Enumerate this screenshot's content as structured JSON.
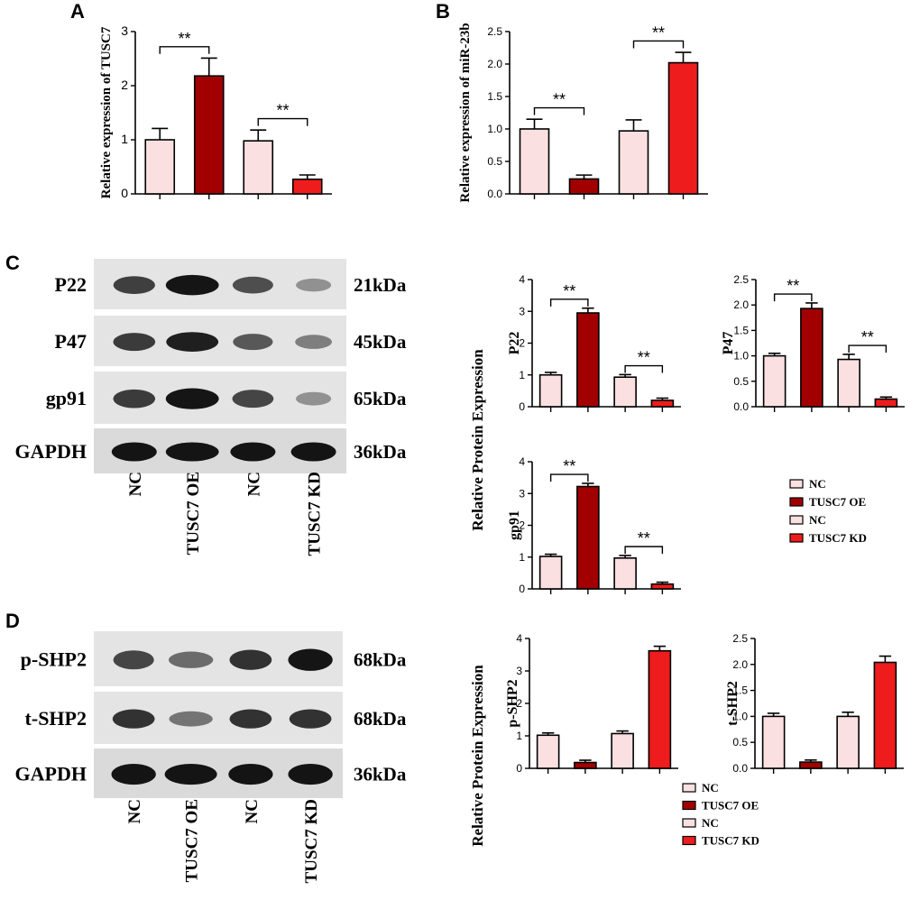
{
  "colors": {
    "NC": "#fbe0e1",
    "TUSC7 OE": "#a20000",
    "TUSC7 KD": "#ee1c1c",
    "axis": "#000000"
  },
  "panels": {
    "A": "A",
    "B": "B",
    "C": "C",
    "D": "D"
  },
  "shared_labels": {
    "relative_protein_expression_c": "Relative Protein Expression",
    "relative_protein_expression_d": "Relative Protein Expression"
  },
  "blots": {
    "C": {
      "rows": [
        {
          "label": "P22",
          "kda": "21kDa",
          "intensity": [
            0.78,
            1.0,
            0.7,
            0.35
          ]
        },
        {
          "label": "P47",
          "kda": "45kDa",
          "intensity": [
            0.8,
            0.95,
            0.65,
            0.45
          ]
        },
        {
          "label": "gp91",
          "kda": "65kDa",
          "intensity": [
            0.8,
            1.0,
            0.75,
            0.35
          ]
        },
        {
          "label": "GAPDH",
          "kda": "36kDa",
          "intensity": [
            1.0,
            1.0,
            1.0,
            1.0
          ]
        }
      ],
      "lanes": [
        "NC",
        "TUSC7 OE",
        "NC",
        "TUSC7 KD"
      ]
    },
    "D": {
      "rows": [
        {
          "label": "p-SHP2",
          "kda": "68kDa",
          "intensity": [
            0.75,
            0.55,
            0.85,
            1.0
          ]
        },
        {
          "label": "t-SHP2",
          "kda": "68kDa",
          "intensity": [
            0.85,
            0.5,
            0.85,
            0.85
          ]
        },
        {
          "label": "GAPDH",
          "kda": "36kDa",
          "intensity": [
            1.0,
            1.0,
            1.0,
            1.0
          ]
        }
      ],
      "lanes": [
        "NC",
        "TUSC7 OE",
        "NC",
        "TUSC7 KD"
      ]
    }
  },
  "legends": {
    "C": [
      "NC",
      "TUSC7 OE",
      "NC",
      "TUSC7 KD"
    ],
    "D": [
      "NC",
      "TUSC7 OE",
      "NC",
      "TUSC7 KD"
    ]
  },
  "chart_data": [
    {
      "id": "A",
      "type": "bar",
      "categories": [
        "NC",
        "TUSC7 OE",
        "NC",
        "TUSC7 KD"
      ],
      "values": [
        1.0,
        2.18,
        0.98,
        0.27
      ],
      "errors": [
        0.21,
        0.33,
        0.2,
        0.08
      ],
      "ylabel": "Relative expression of TUSC7",
      "ylim": [
        0,
        3
      ],
      "yticks": [
        "0",
        "1",
        "2",
        "3"
      ],
      "significance": [
        {
          "pair": [
            0,
            1
          ],
          "text": "**"
        },
        {
          "pair": [
            2,
            3
          ],
          "text": "**"
        }
      ]
    },
    {
      "id": "B",
      "type": "bar",
      "categories": [
        "NC",
        "TUSC7 OE",
        "NC",
        "TUSC7 KD"
      ],
      "values": [
        1.0,
        0.23,
        0.97,
        2.02
      ],
      "errors": [
        0.15,
        0.06,
        0.17,
        0.16
      ],
      "ylabel": "Relative expression of miR-23b",
      "ylim": [
        0,
        2.5
      ],
      "yticks": [
        "0.0",
        "0.5",
        "1.0",
        "1.5",
        "2.0",
        "2.5"
      ],
      "significance": [
        {
          "pair": [
            0,
            1
          ],
          "text": "**"
        },
        {
          "pair": [
            2,
            3
          ],
          "text": "**"
        }
      ]
    },
    {
      "id": "C-P22",
      "type": "bar",
      "categories": [
        "NC",
        "TUSC7 OE",
        "NC",
        "TUSC7 KD"
      ],
      "values": [
        1.0,
        2.95,
        0.93,
        0.2
      ],
      "errors": [
        0.08,
        0.15,
        0.08,
        0.07
      ],
      "ylabel": "P22",
      "ylim": [
        0,
        4
      ],
      "yticks": [
        "0",
        "1",
        "2",
        "3",
        "4"
      ],
      "significance": [
        {
          "pair": [
            0,
            1
          ],
          "text": "**"
        },
        {
          "pair": [
            2,
            3
          ],
          "text": "**"
        }
      ]
    },
    {
      "id": "C-P47",
      "type": "bar",
      "categories": [
        "NC",
        "TUSC7 OE",
        "NC",
        "TUSC7 KD"
      ],
      "values": [
        1.0,
        1.93,
        0.93,
        0.15
      ],
      "errors": [
        0.05,
        0.11,
        0.1,
        0.04
      ],
      "ylabel": "P47",
      "ylim": [
        0,
        2.5
      ],
      "yticks": [
        "0.0",
        "0.5",
        "1.0",
        "1.5",
        "2.0",
        "2.5"
      ],
      "significance": [
        {
          "pair": [
            0,
            1
          ],
          "text": "**"
        },
        {
          "pair": [
            2,
            3
          ],
          "text": "**"
        }
      ]
    },
    {
      "id": "C-gp91",
      "type": "bar",
      "categories": [
        "NC",
        "TUSC7 OE",
        "NC",
        "TUSC7 KD"
      ],
      "values": [
        1.02,
        3.22,
        0.97,
        0.15
      ],
      "errors": [
        0.07,
        0.1,
        0.08,
        0.06
      ],
      "ylabel": "gp91",
      "ylim": [
        0,
        4
      ],
      "yticks": [
        "0",
        "1",
        "2",
        "3",
        "4"
      ],
      "significance": [
        {
          "pair": [
            0,
            1
          ],
          "text": "**"
        },
        {
          "pair": [
            2,
            3
          ],
          "text": "**"
        }
      ]
    },
    {
      "id": "D-pSHP2",
      "type": "bar",
      "categories": [
        "NC",
        "TUSC7 OE",
        "NC",
        "TUSC7 KD"
      ],
      "values": [
        1.02,
        0.18,
        1.07,
        3.62
      ],
      "errors": [
        0.07,
        0.07,
        0.08,
        0.14
      ],
      "ylabel": "p-SHP2",
      "ylim": [
        0,
        4
      ],
      "yticks": [
        "0",
        "1",
        "2",
        "3",
        "4"
      ],
      "significance": []
    },
    {
      "id": "D-tSHP2",
      "type": "bar",
      "categories": [
        "NC",
        "TUSC7 OE",
        "NC",
        "TUSC7 KD"
      ],
      "values": [
        1.0,
        0.12,
        1.0,
        2.04
      ],
      "errors": [
        0.06,
        0.04,
        0.08,
        0.12
      ],
      "ylabel": "t-SHP2",
      "ylim": [
        0,
        2.5
      ],
      "yticks": [
        "0.0",
        "0.5",
        "1.0",
        "1.5",
        "2.0",
        "2.5"
      ],
      "significance": []
    }
  ]
}
